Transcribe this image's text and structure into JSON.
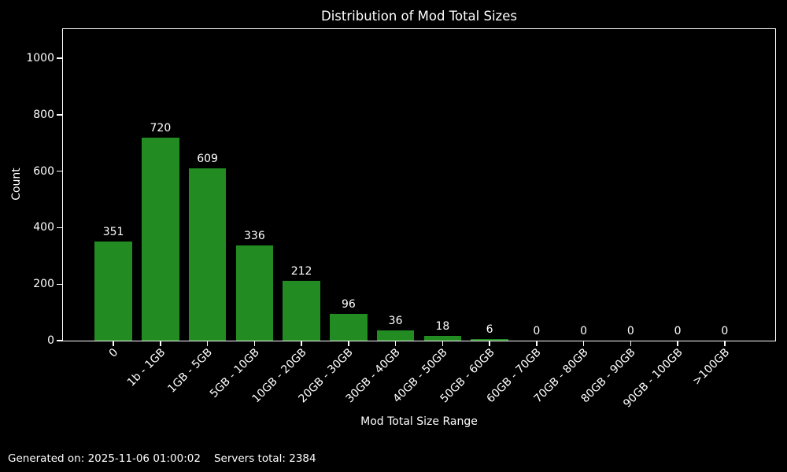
{
  "chart_data": {
    "type": "bar",
    "title": "Distribution of Mod Total Sizes",
    "xlabel": "Mod Total Size Range",
    "ylabel": "Count",
    "categories": [
      "0",
      "1b - 1GB",
      "1GB - 5GB",
      "5GB - 10GB",
      "10GB - 20GB",
      "20GB - 30GB",
      "30GB - 40GB",
      "40GB - 50GB",
      "50GB - 60GB",
      "60GB - 70GB",
      "70GB - 80GB",
      "80GB - 90GB",
      "90GB - 100GB",
      ">100GB"
    ],
    "values": [
      351,
      720,
      609,
      336,
      212,
      96,
      36,
      18,
      6,
      0,
      0,
      0,
      0,
      0
    ],
    "yticks": [
      0,
      200,
      400,
      600,
      800,
      1000
    ],
    "ylim": [
      0,
      1106
    ],
    "bar_labels_shown": true,
    "grid": false,
    "legend": null,
    "x_tick_rotation_deg": 45,
    "colors": {
      "bar": "#228B22",
      "background": "#000000",
      "text": "#ffffff",
      "axes_frame": "#ffffff"
    }
  },
  "footer": {
    "generated": "Generated on: 2025-11-06 01:00:02",
    "servers_total": "Servers total: 2384"
  }
}
